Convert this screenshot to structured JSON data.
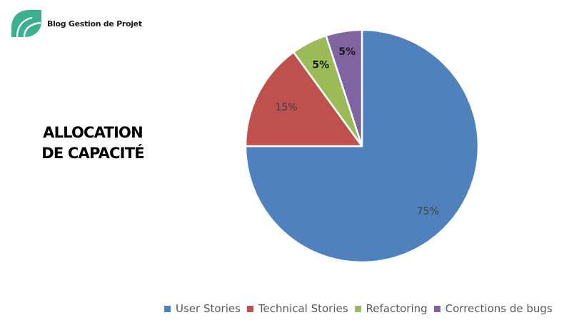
{
  "brand": {
    "name": "Blog Gestion de Projet",
    "logo_icon": "leaf-logo-icon",
    "logo_color": "#3bb08f"
  },
  "page_title": {
    "line1": "ALLOCATION",
    "line2": "DE CAPACITÉ"
  },
  "chart_data": {
    "type": "pie",
    "title": "",
    "categories": [
      "User Stories",
      "Technical Stories",
      "Refactoring",
      "Corrections de bugs"
    ],
    "values": [
      75,
      15,
      5,
      5
    ],
    "labels": [
      "75%",
      "15%",
      "5%",
      "5%"
    ],
    "colors": [
      "#4f81bd",
      "#c0504d",
      "#9bbb59",
      "#8064a2"
    ],
    "legend_position": "bottom"
  }
}
